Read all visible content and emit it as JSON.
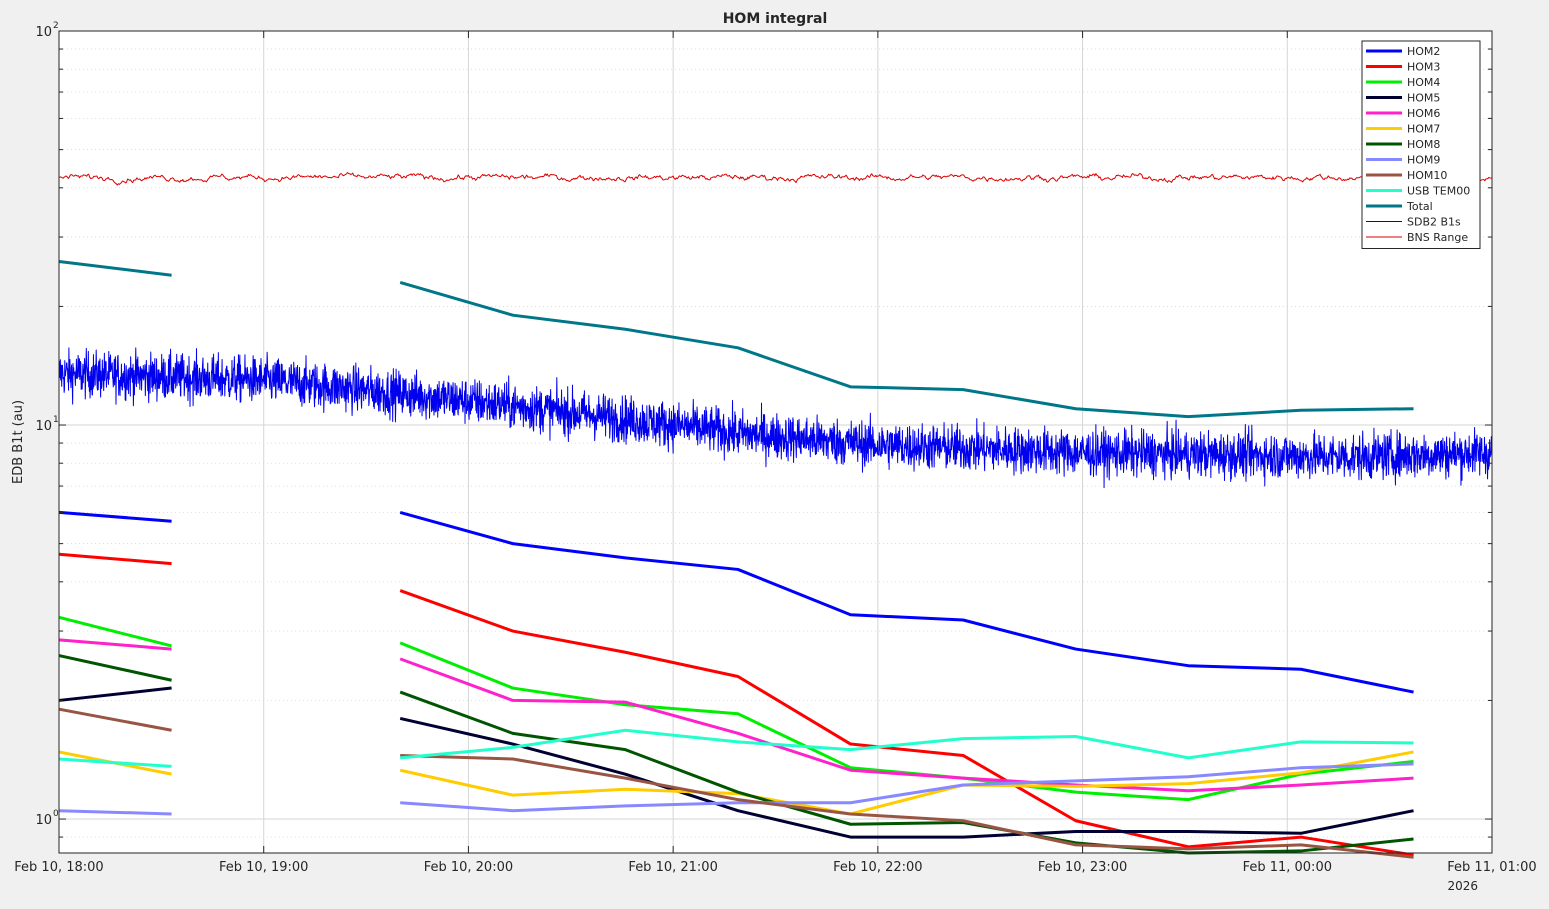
{
  "chart_data": {
    "type": "line",
    "title": "HOM integral",
    "xlabel": "",
    "ylabel": "EDB B1t (au)",
    "yscale": "log",
    "ylim": [
      0.82,
      100
    ],
    "xlim": [
      "Feb 10 18:00",
      "Feb 11 01:00"
    ],
    "x_year_label": "2026",
    "grid": true,
    "legend_position": "top-right",
    "x_ticks": [
      {
        "label": "Feb 10, 18:00"
      },
      {
        "label": "Feb 10, 19:00"
      },
      {
        "label": "Feb 10, 20:00"
      },
      {
        "label": "Feb 10, 21:00"
      },
      {
        "label": "Feb 10, 22:00"
      },
      {
        "label": "Feb 10, 23:00"
      },
      {
        "label": "Feb 11, 00:00"
      },
      {
        "label": "Feb 11, 01:00"
      }
    ],
    "y_ticks": [
      {
        "value": 1,
        "mantissa": "10",
        "exponent": "0"
      },
      {
        "value": 10,
        "mantissa": "10",
        "exponent": "1"
      },
      {
        "value": 100,
        "mantissa": "10",
        "exponent": "2"
      }
    ],
    "x_times": [
      "18:00",
      "18:33",
      "19:40",
      "20:13",
      "20:46",
      "21:19",
      "21:52",
      "22:25",
      "22:58",
      "23:31",
      "00:04",
      "00:37"
    ],
    "series": [
      {
        "name": "HOM2",
        "color": "#0000ff",
        "width": 3,
        "values": [
          6.0,
          5.7,
          6.0,
          5.0,
          4.6,
          4.3,
          3.3,
          3.2,
          2.7,
          2.45,
          2.4,
          2.1
        ]
      },
      {
        "name": "HOM3",
        "color": "#ff0000",
        "width": 3,
        "values": [
          4.7,
          4.45,
          3.8,
          3.0,
          2.65,
          2.3,
          1.55,
          1.45,
          0.99,
          0.85,
          0.9,
          0.81
        ]
      },
      {
        "name": "HOM4",
        "color": "#00ee00",
        "width": 3,
        "values": [
          3.25,
          2.75,
          2.8,
          2.15,
          1.95,
          1.85,
          1.35,
          1.27,
          1.17,
          1.12,
          1.3,
          1.4
        ]
      },
      {
        "name": "HOM5",
        "color": "#000033",
        "width": 3,
        "values": [
          2.0,
          2.15,
          1.8,
          1.55,
          1.3,
          1.05,
          0.9,
          0.9,
          0.93,
          0.93,
          0.92,
          1.05
        ]
      },
      {
        "name": "HOM6",
        "color": "#ff22cc",
        "width": 3,
        "values": [
          2.85,
          2.7,
          2.55,
          2.0,
          1.98,
          1.65,
          1.33,
          1.27,
          1.22,
          1.18,
          1.22,
          1.27
        ]
      },
      {
        "name": "HOM7",
        "color": "#ffcc00",
        "width": 3,
        "values": [
          1.48,
          1.3,
          1.33,
          1.15,
          1.19,
          1.16,
          1.03,
          1.22,
          1.21,
          1.23,
          1.31,
          1.48
        ]
      },
      {
        "name": "HOM8",
        "color": "#005500",
        "width": 3,
        "values": [
          2.6,
          2.25,
          2.1,
          1.65,
          1.5,
          1.17,
          0.97,
          0.98,
          0.87,
          0.82,
          0.83,
          0.89
        ]
      },
      {
        "name": "HOM9",
        "color": "#8888ff",
        "width": 3,
        "values": [
          1.05,
          1.03,
          1.1,
          1.05,
          1.08,
          1.1,
          1.1,
          1.22,
          1.25,
          1.28,
          1.35,
          1.38
        ]
      },
      {
        "name": "HOM10",
        "color": "#995544",
        "width": 3,
        "values": [
          1.9,
          1.68,
          1.45,
          1.42,
          1.27,
          1.12,
          1.03,
          0.99,
          0.86,
          0.84,
          0.86,
          0.8
        ]
      },
      {
        "name": "USB TEM00",
        "color": "#22ffcc",
        "width": 3,
        "values": [
          1.42,
          1.36,
          1.43,
          1.52,
          1.68,
          1.57,
          1.5,
          1.6,
          1.62,
          1.43,
          1.57,
          1.56
        ]
      },
      {
        "name": "Total",
        "color": "#007788",
        "width": 3,
        "values": [
          26.0,
          24.0,
          23.0,
          19.0,
          17.5,
          15.7,
          12.5,
          12.3,
          11.0,
          10.5,
          10.9,
          11.0
        ]
      },
      {
        "name": "SDB2 B1s",
        "color": "#0000ee",
        "width": 1,
        "trend": [
          [
            0,
            13.5
          ],
          [
            60,
            13.0
          ],
          [
            100,
            12.0
          ],
          [
            160,
            10.5
          ],
          [
            200,
            9.5
          ],
          [
            240,
            8.9
          ],
          [
            300,
            8.5
          ],
          [
            380,
            8.3
          ],
          [
            420,
            8.5
          ]
        ],
        "noise": 0.06
      },
      {
        "name": "BNS Range",
        "color": "#dd0000",
        "width": 1,
        "trend": [
          [
            0,
            42.5
          ],
          [
            420,
            42.5
          ]
        ],
        "noise": 0.012
      }
    ]
  }
}
